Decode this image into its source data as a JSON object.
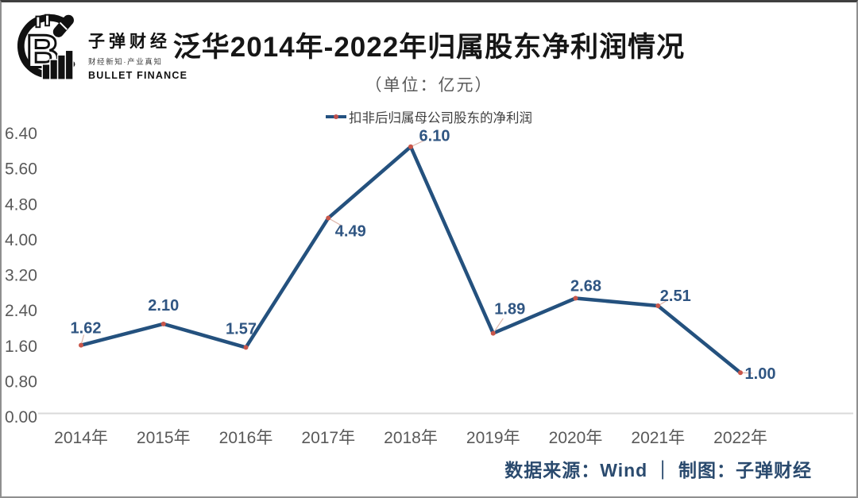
{
  "logo": {
    "name_cn": "子弹财经",
    "tagline": "财经新知·产业真知",
    "name_en": "BULLET FINANCE"
  },
  "header": {
    "title": "泛华2014年-2022年归属股东净利润情况",
    "subtitle": "（单位：亿元）"
  },
  "chart_data": {
    "type": "line",
    "title": "泛华2014年-2022年归属股东净利润情况",
    "unit_label": "（单位：亿元）",
    "legend_label": "扣非后归属母公司股东的净利润",
    "legend_position": "top",
    "categories": [
      "2014年",
      "2015年",
      "2016年",
      "2017年",
      "2018年",
      "2019年",
      "2020年",
      "2021年",
      "2022年"
    ],
    "series": [
      {
        "name": "扣非后归属母公司股东的净利润",
        "values": [
          1.62,
          2.1,
          1.57,
          4.49,
          6.1,
          1.89,
          2.68,
          2.51,
          1.0
        ],
        "labels": [
          "1.62",
          "2.10",
          "1.57",
          "4.49",
          "6.10",
          "1.89",
          "2.68",
          "2.51",
          "1.00"
        ]
      }
    ],
    "y_ticks": [
      "6.40",
      "5.60",
      "4.80",
      "4.00",
      "3.20",
      "2.40",
      "1.60",
      "0.80",
      "0.00"
    ],
    "ylim": [
      0,
      6.4
    ],
    "grid": false,
    "colors": {
      "line": "#24517e",
      "marker": "#c9564a",
      "label": "#2f5582",
      "leader": "#dfb6aa",
      "axis_text": "#595959",
      "axis_line": "#d9d9d9"
    }
  },
  "footer": {
    "source_text": "数据来源：Wind ｜ 制图：子弹财经"
  }
}
